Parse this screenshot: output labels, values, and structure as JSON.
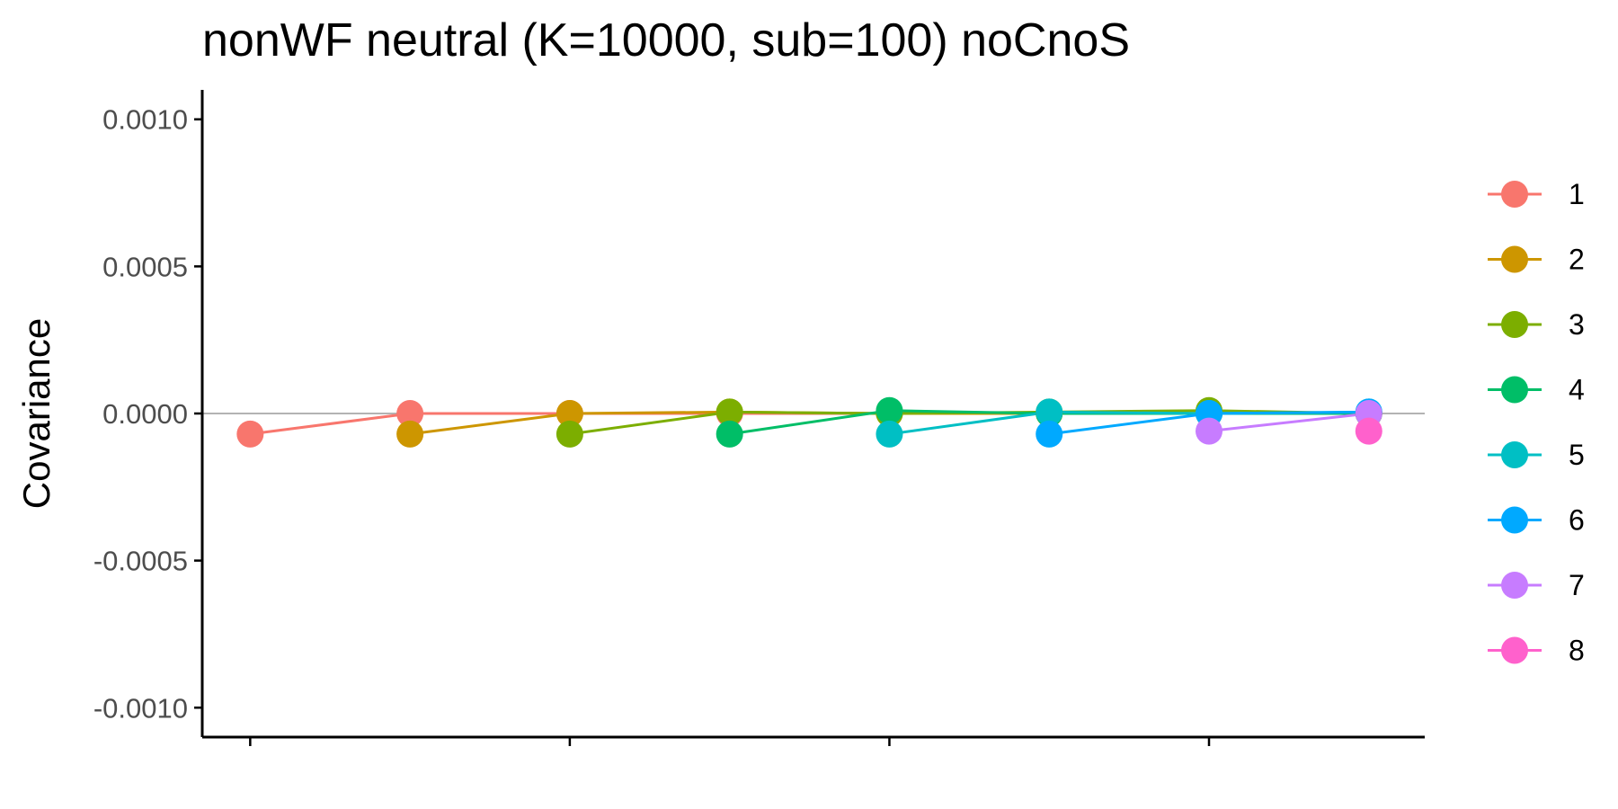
{
  "chart_data": {
    "type": "line",
    "title": "nonWF neutral (K=10000, sub=100) noCnoS",
    "xlabel": "",
    "ylabel": "Covariance",
    "x": [
      1,
      2,
      3,
      4,
      5,
      6,
      7,
      8
    ],
    "xticks": [
      1,
      3,
      5,
      7
    ],
    "xtick_labels": [
      "",
      "",
      "",
      ""
    ],
    "ylim": [
      -0.0011,
      0.0011
    ],
    "yticks": [
      -0.001,
      -0.0005,
      0.0,
      0.0005,
      0.001
    ],
    "ytick_labels": [
      "-0.0010",
      "-0.0005",
      "0.0000",
      "0.0005",
      "0.0010"
    ],
    "reference_line_y": 0.0,
    "grid": false,
    "legend_position": "right",
    "series": [
      {
        "name": "1",
        "color": "#F8766D",
        "x": [
          1,
          2,
          3,
          4,
          5,
          6,
          7,
          8
        ],
        "values": [
          -7e-05,
          0.0,
          0.0,
          0.0,
          0.0,
          0.0,
          0.0,
          0.0
        ]
      },
      {
        "name": "2",
        "color": "#CD9600",
        "x": [
          2,
          3,
          4,
          5,
          6,
          7,
          8
        ],
        "values": [
          -7e-05,
          0.0,
          5e-06,
          0.0,
          0.0,
          0.0,
          0.0
        ]
      },
      {
        "name": "3",
        "color": "#7CAE00",
        "x": [
          3,
          4,
          5,
          6,
          7,
          8
        ],
        "values": [
          -7e-05,
          5e-06,
          0.0,
          5e-06,
          1e-05,
          0.0
        ]
      },
      {
        "name": "4",
        "color": "#00BE67",
        "x": [
          4,
          5,
          6,
          7,
          8
        ],
        "values": [
          -7e-05,
          1e-05,
          0.0,
          0.0,
          0.0
        ]
      },
      {
        "name": "5",
        "color": "#00BFC4",
        "x": [
          5,
          6,
          7,
          8
        ],
        "values": [
          -7e-05,
          5e-06,
          0.0,
          5e-06
        ]
      },
      {
        "name": "6",
        "color": "#00A9FF",
        "x": [
          6,
          7,
          8
        ],
        "values": [
          -7e-05,
          0.0,
          5e-06
        ]
      },
      {
        "name": "7",
        "color": "#C77CFF",
        "x": [
          7,
          8
        ],
        "values": [
          -6e-05,
          0.0
        ]
      },
      {
        "name": "8",
        "color": "#FF61CC",
        "x": [
          8
        ],
        "values": [
          -6e-05
        ]
      }
    ]
  }
}
